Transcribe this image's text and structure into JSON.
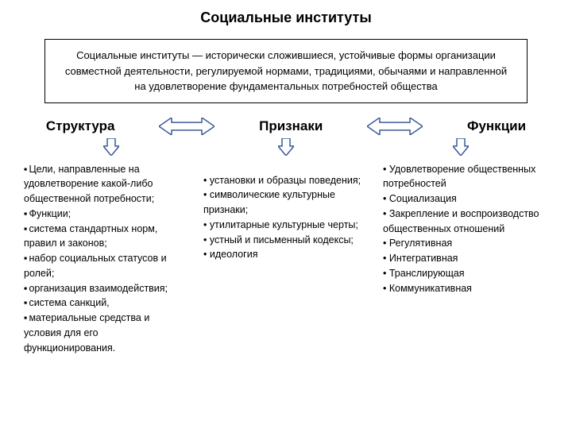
{
  "title": "Социальные институты",
  "definition": "Социальные институты — исторически сложившиеся, устойчивые формы организации совместной деятельности, регулируемой нормами, традициями, обычаями и направленной на удовлетворение фундаментальных потребностей общества",
  "columns": {
    "structure": {
      "header": "Структура",
      "items": [
        "Цели, направленные на удовлетворение какой-либо общественной потребности;",
        "Функции;",
        "система стандартных норм, правил и законов;",
        "набор социальных статусов и ролей;",
        "организация взаимодействия;",
        "система санкций,",
        "материальные средства и условия для его функционирования."
      ]
    },
    "attributes": {
      "header": "Признаки",
      "items": [
        "установки и образцы поведения;",
        "символические культурные признаки;",
        "утилитарные культурные черты;",
        "устный и письменный кодексы;",
        "идеология"
      ]
    },
    "functions": {
      "header": "Функции",
      "items": [
        "Удовлетворение общественных потребностей",
        "Социализация",
        "Закрепление и воспроизводство общественных отношений",
        "Регулятивная",
        "Интегративная",
        "Транслирующая",
        "Коммуникативная"
      ]
    }
  },
  "styling": {
    "arrow_stroke": "#3a5a9a",
    "arrow_fill": "#ffffff",
    "arrow_stroke_width": 1.5,
    "bidir_arrow_w": 70,
    "bidir_arrow_h": 22,
    "down_arrow_w": 20,
    "down_arrow_h": 22,
    "background": "#ffffff",
    "text_color": "#000000",
    "border_color": "#000000",
    "title_fontsize": 18,
    "header_fontsize": 17,
    "body_fontsize": 12.5,
    "def_fontsize": 13
  }
}
